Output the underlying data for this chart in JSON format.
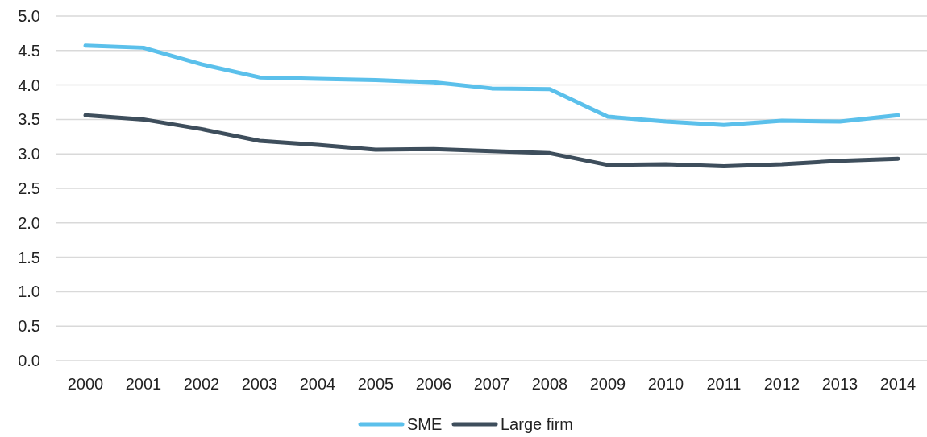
{
  "chart_data": {
    "type": "line",
    "categories": [
      "2000",
      "2001",
      "2002",
      "2003",
      "2004",
      "2005",
      "2006",
      "2007",
      "2008",
      "2009",
      "2010",
      "2011",
      "2012",
      "2013",
      "2014"
    ],
    "series": [
      {
        "name": "SME",
        "color": "#5bc0eb",
        "values": [
          4.57,
          4.54,
          4.3,
          4.11,
          4.09,
          4.07,
          4.04,
          3.95,
          3.94,
          3.54,
          3.47,
          3.42,
          3.48,
          3.47,
          3.56
        ]
      },
      {
        "name": "Large firm",
        "color": "#3e4e5c",
        "values": [
          3.56,
          3.5,
          3.36,
          3.19,
          3.13,
          3.06,
          3.07,
          3.04,
          3.01,
          2.84,
          2.85,
          2.82,
          2.85,
          2.9,
          2.93
        ]
      }
    ],
    "ylim": [
      0,
      5
    ],
    "yticks": [
      {
        "value": 0,
        "label": "0.0"
      },
      {
        "value": 0.5,
        "label": "0.5"
      },
      {
        "value": 1,
        "label": "1.0"
      },
      {
        "value": 1.5,
        "label": "1.5"
      },
      {
        "value": 2,
        "label": "2.0"
      },
      {
        "value": 2.5,
        "label": "2.5"
      },
      {
        "value": 3,
        "label": "3.0"
      },
      {
        "value": 3.5,
        "label": "3.5"
      },
      {
        "value": 4,
        "label": "4.0"
      },
      {
        "value": 4.5,
        "label": "4.5"
      },
      {
        "value": 5,
        "label": "5.0"
      }
    ],
    "grid": "y",
    "legend": "bottom",
    "marker": "none",
    "line_style": "solid"
  }
}
